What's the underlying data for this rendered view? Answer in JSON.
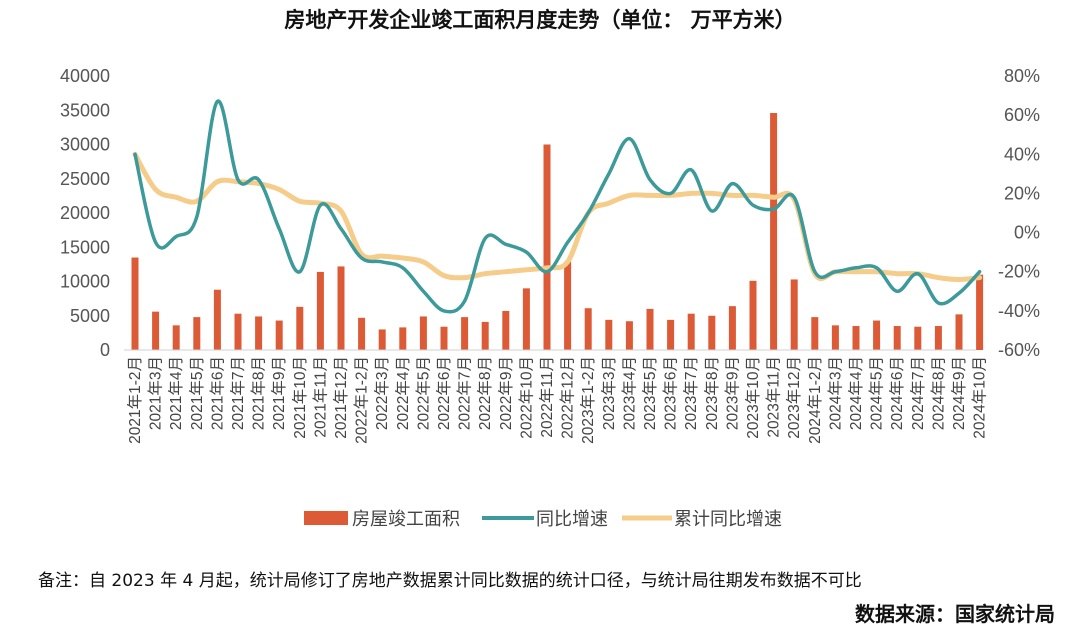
{
  "chart_data": {
    "type": "bar",
    "title": "房地产开发企业竣工面积月度走势（单位： 万平方米）",
    "categories": [
      "2021年1-2月",
      "2021年3月",
      "2021年4月",
      "2021年5月",
      "2021年6月",
      "2021年7月",
      "2021年8月",
      "2021年9月",
      "2021年10月",
      "2021年11月",
      "2021年12月",
      "2022年1-2月",
      "2022年3月",
      "2022年4月",
      "2022年5月",
      "2022年6月",
      "2022年7月",
      "2022年8月",
      "2022年9月",
      "2022年10月",
      "2022年11月",
      "2022年12月",
      "2023年1-2月",
      "2023年3月",
      "2023年4月",
      "2023年5月",
      "2023年6月",
      "2023年7月",
      "2023年8月",
      "2023年9月",
      "2023年10月",
      "2023年11月",
      "2023年12月",
      "2024年1-2月",
      "2024年3月",
      "2024年4月",
      "2024年5月",
      "2024年6月",
      "2024年7月",
      "2024年8月",
      "2024年9月",
      "2024年10月"
    ],
    "y_left": {
      "ticks": [
        "40000",
        "35000",
        "30000",
        "25000",
        "20000",
        "15000",
        "10000",
        "5000",
        "0"
      ],
      "ylim": [
        0,
        40000
      ]
    },
    "y_right": {
      "ticks": [
        "80%",
        "60%",
        "40%",
        "20%",
        "0%",
        "-20%",
        "-40%",
        "-60%"
      ],
      "ylim": [
        -60,
        80
      ]
    },
    "series": [
      {
        "name": "房屋竣工面积",
        "kind": "bar",
        "axis": "left",
        "color": "#dc5a35",
        "values": [
          13500,
          5600,
          3600,
          4800,
          8800,
          5300,
          4900,
          4300,
          6300,
          11400,
          12200,
          4700,
          3000,
          3300,
          4900,
          3400,
          4800,
          4100,
          5700,
          9000,
          30000,
          12900,
          6100,
          4400,
          4200,
          6000,
          4400,
          5300,
          5000,
          6400,
          10100,
          34600,
          10300,
          4800,
          3600,
          3500,
          4300,
          3500,
          3400,
          3500,
          5200,
          11000
        ]
      },
      {
        "name": "同比增速",
        "kind": "line",
        "axis": "right",
        "color": "#3c9a9a",
        "values": [
          40,
          -5,
          -2,
          8,
          67,
          27,
          27,
          2,
          -20,
          14,
          2,
          -13,
          -15,
          -18,
          -30,
          -40,
          -35,
          -3,
          -6,
          -10,
          -20,
          -5,
          10,
          30,
          48,
          27,
          20,
          32,
          11,
          25,
          14,
          12,
          18,
          -20,
          -20,
          -18,
          -18,
          -30,
          -21,
          -36,
          -31,
          -20
        ]
      },
      {
        "name": "累计同比增速",
        "kind": "line",
        "axis": "right",
        "color": "#f5cc8a",
        "values": [
          40,
          22,
          18,
          16,
          26,
          26,
          25,
          22,
          16,
          15,
          11,
          -11,
          -12,
          -13,
          -15,
          -22,
          -23,
          -21,
          -20,
          -19,
          -18,
          -15,
          10,
          15,
          19,
          19,
          19,
          20,
          20,
          19,
          19,
          18,
          17,
          -21,
          -20,
          -20,
          -20,
          -21,
          -21,
          -23,
          -24,
          -23
        ]
      }
    ],
    "legend": "bottom-center",
    "grid": false
  },
  "footer": {
    "note": "备注：自 2023 年 4 月起，统计局修订了房地产数据累计同比数据的统计口径，与统计局往期发布数据不可比",
    "source": "数据来源：国家统计局"
  }
}
